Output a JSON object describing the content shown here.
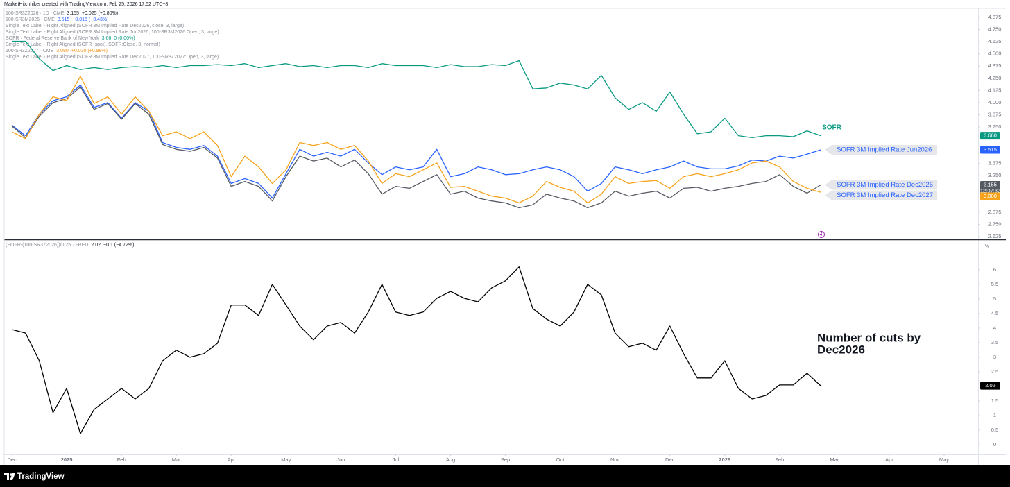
{
  "header": "MarketHitchhiker created with TradingView.com, Feb 25, 2026 17:52 UTC+8",
  "footer": "TradingView",
  "chart_data": [
    {
      "type": "line",
      "x": [
        0,
        0.25,
        0.5,
        0.75,
        1,
        1.25,
        1.5,
        1.75,
        2,
        2.25,
        2.5,
        2.75,
        3,
        3.25,
        3.5,
        3.75,
        4,
        4.25,
        4.5,
        4.75,
        5,
        5.25,
        5.5,
        5.75,
        6,
        6.25,
        6.5,
        6.75,
        7,
        7.25,
        7.5,
        7.75,
        8,
        8.25,
        8.5,
        8.75,
        9,
        9.25,
        9.5,
        9.75,
        10,
        10.25,
        10.5,
        10.75,
        11,
        11.25,
        11.5,
        11.75,
        12,
        12.25,
        12.5,
        12.75,
        13,
        13.25,
        13.5,
        13.75,
        14,
        14.25,
        14.5,
        14.75
      ],
      "xlim": [
        -0.14,
        17.62
      ],
      "ylim": [
        2.596,
        4.968
      ],
      "yticks": [
        4.875,
        {
          "value": 4.75,
          "label": "4.750"
        },
        4.625,
        {
          "value": 4.5,
          "label": "4.500"
        },
        4.375,
        {
          "value": 4.25,
          "label": "4.250"
        },
        4.125,
        {
          "value": 4,
          "label": "4.000"
        },
        3.875,
        {
          "value": 3.75,
          "label": "3.750"
        },
        3.375,
        {
          "value": 3.25,
          "label": "3.250"
        },
        2.875,
        {
          "value": 2.75,
          "label": "2.750"
        },
        2.625
      ],
      "grid": false,
      "countdown": "12:07:32",
      "legend": [
        {
          "name": "100-SR3Z2026 · 1D · CME",
          "value": "3.155",
          "change": "+0.025 (+0.80%)",
          "color": "#131722"
        },
        {
          "name": "100-SR3M2026 · CME",
          "value": "3.515",
          "change": "+0.015 (+0.43%)",
          "color": "#2962ff"
        },
        {
          "name": "Single Text Label - Right Aligned (SOFR 3M Implied Rate Dec2026, close, 3, large)"
        },
        {
          "name": "Single Text Label - Right Aligned (SOFR 3M Implied Rate Jun2026, 100-SR3M2026:Open, 3, large)"
        },
        {
          "name": "SOFR · Federal Reserve Bank of New York",
          "value": "3.66",
          "change": "0 (0.00%)",
          "color": "#089981"
        },
        {
          "name": "Single Text Label - Right Aligned (SOFR (spot), SOFR:Close, 3, normal)"
        },
        {
          "name": "100-SR3Z2027 · CME",
          "value": "3.080",
          "change": "+0.030 (+0.98%)",
          "color": "#f7931a"
        },
        {
          "name": "Single Text Label - Right Aligned (SOFR 3M Implied Rate Dec2027, 100-SR3Z2027:Open, 3, large)"
        }
      ],
      "series": [
        {
          "name": "SOFR",
          "color": "#089981",
          "label_box": false,
          "price_label": "3.660",
          "values": [
            4.63,
            4.63,
            4.45,
            4.33,
            4.38,
            4.34,
            4.36,
            4.34,
            4.36,
            4.37,
            4.36,
            4.38,
            4.36,
            4.38,
            4.38,
            4.39,
            4.38,
            4.4,
            4.36,
            4.38,
            4.4,
            4.37,
            4.38,
            4.36,
            4.38,
            4.38,
            4.36,
            4.4,
            4.38,
            4.38,
            4.38,
            4.36,
            4.39,
            4.37,
            4.37,
            4.39,
            4.38,
            4.43,
            4.14,
            4.15,
            4.2,
            4.18,
            4.14,
            4.28,
            4.05,
            3.93,
            4,
            3.91,
            4.11,
            3.88,
            3.68,
            3.7,
            3.84,
            3.66,
            3.64,
            3.66,
            3.66,
            3.65,
            3.71,
            3.66
          ]
        },
        {
          "name": "SOFR 3M Implied Rate Jun2026",
          "color": "#2962ff",
          "label_box": true,
          "price_label": "3.515",
          "values": [
            3.77,
            3.66,
            3.88,
            4.02,
            4.06,
            4.18,
            3.95,
            4,
            3.84,
            4,
            3.91,
            3.59,
            3.54,
            3.52,
            3.56,
            3.45,
            3.17,
            3.22,
            3.17,
            3.02,
            3.27,
            3.52,
            3.45,
            3.49,
            3.45,
            3.52,
            3.38,
            3.26,
            3.34,
            3.31,
            3.34,
            3.52,
            3.24,
            3.27,
            3.34,
            3.31,
            3.26,
            3.27,
            3.31,
            3.34,
            3.31,
            3.24,
            3.09,
            3.17,
            3.34,
            3.31,
            3.27,
            3.31,
            3.34,
            3.4,
            3.34,
            3.32,
            3.32,
            3.35,
            3.41,
            3.4,
            3.45,
            3.43,
            3.47,
            3.515
          ]
        },
        {
          "name": "SOFR 3M Implied Rate Dec2026",
          "color": "#555962",
          "label_box": true,
          "price_label": "3.155",
          "price_line": true,
          "values": [
            3.76,
            3.64,
            3.86,
            4,
            4.04,
            4.16,
            3.93,
            3.99,
            3.83,
            3.99,
            3.88,
            3.57,
            3.52,
            3.5,
            3.54,
            3.43,
            3.14,
            3.19,
            3.14,
            2.99,
            3.24,
            3.45,
            3.4,
            3.43,
            3.34,
            3.41,
            3.27,
            3.06,
            3.14,
            3.12,
            3.19,
            3.26,
            3.06,
            3.09,
            3.02,
            2.99,
            2.97,
            2.92,
            2.95,
            3.06,
            3.02,
            2.99,
            2.92,
            2.97,
            3.09,
            3.04,
            3.07,
            3.09,
            3.02,
            3.12,
            3.13,
            3.09,
            3.12,
            3.14,
            3.17,
            3.19,
            3.26,
            3.14,
            3.07,
            3.155
          ]
        },
        {
          "name": "SOFR 3M Implied Rate Dec2027",
          "color": "#f7a21b",
          "label_box": true,
          "price_label": "3.080",
          "values": [
            3.7,
            3.63,
            3.88,
            4.06,
            4.02,
            4.27,
            3.99,
            4.06,
            3.88,
            4.06,
            3.91,
            3.66,
            3.7,
            3.63,
            3.7,
            3.56,
            3.24,
            3.45,
            3.34,
            3.17,
            3.31,
            3.59,
            3.56,
            3.59,
            3.52,
            3.56,
            3.4,
            3.17,
            3.27,
            3.24,
            3.31,
            3.38,
            3.13,
            3.14,
            3.09,
            3.04,
            3.02,
            2.97,
            3.04,
            3.19,
            3.13,
            3.09,
            2.97,
            3.06,
            3.24,
            3.17,
            3.19,
            3.2,
            3.12,
            3.24,
            3.27,
            3.24,
            3.27,
            3.31,
            3.38,
            3.4,
            3.34,
            3.19,
            3.12,
            3.08
          ]
        }
      ]
    },
    {
      "type": "line",
      "x": [
        0,
        0.25,
        0.5,
        0.75,
        1,
        1.25,
        1.5,
        1.75,
        2,
        2.25,
        2.5,
        2.75,
        3,
        3.25,
        3.5,
        3.75,
        4,
        4.25,
        4.5,
        4.75,
        5,
        5.25,
        5.5,
        5.75,
        6,
        6.25,
        6.5,
        6.75,
        7,
        7.25,
        7.5,
        7.75,
        8,
        8.25,
        8.5,
        8.75,
        9,
        9.25,
        9.5,
        9.75,
        10,
        10.25,
        10.5,
        10.75,
        11,
        11.25,
        11.5,
        11.75,
        12,
        12.25,
        12.5,
        12.75,
        13,
        13.25,
        13.5,
        13.75,
        14,
        14.25,
        14.5,
        14.75
      ],
      "xlim": [
        -0.14,
        17.62
      ],
      "xticks": [
        {
          "value": 0,
          "label": "Dec"
        },
        {
          "value": 1,
          "label": "2025"
        },
        {
          "value": 2,
          "label": "Feb"
        },
        {
          "value": 3,
          "label": "Mar"
        },
        {
          "value": 4,
          "label": "Apr"
        },
        {
          "value": 5,
          "label": "May"
        },
        {
          "value": 6,
          "label": "Jun"
        },
        {
          "value": 7,
          "label": "Jul"
        },
        {
          "value": 8,
          "label": "Aug"
        },
        {
          "value": 9,
          "label": "Sep"
        },
        {
          "value": 10,
          "label": "Oct"
        },
        {
          "value": 11,
          "label": "Nov"
        },
        {
          "value": 12,
          "label": "Dec"
        },
        {
          "value": 13,
          "label": "2026"
        },
        {
          "value": 14,
          "label": "Feb"
        },
        {
          "value": 15,
          "label": "Mar"
        },
        {
          "value": 16,
          "label": "Apr"
        },
        {
          "value": 17,
          "label": "May"
        }
      ],
      "ylim": [
        -0.333,
        7.02
      ],
      "yticks": [
        0,
        0.5,
        1,
        1.5,
        2.5,
        3,
        3.5,
        4,
        4.5,
        5,
        5.5,
        6
      ],
      "y_unit": "%",
      "grid": false,
      "legend": [
        {
          "name": "(SOFR-(100-SR3Z2026))/0.25 · FRED",
          "value": "2.02",
          "change": "−0.1 (−4.72%)",
          "color": "#131722"
        }
      ],
      "annotation": [
        "Number of cuts by",
        "Dec2026"
      ],
      "series": [
        {
          "color": "#000000",
          "price_label": "2.02",
          "values": [
            3.95,
            3.83,
            2.88,
            1.1,
            1.93,
            0.38,
            1.21,
            1.57,
            1.93,
            1.57,
            1.93,
            2.88,
            3.24,
            3,
            3.12,
            3.48,
            4.79,
            4.79,
            4.43,
            5.5,
            4.79,
            4.07,
            3.6,
            4.07,
            4.19,
            3.83,
            4.55,
            5.5,
            4.55,
            4.43,
            4.55,
            5.02,
            5.26,
            5.02,
            4.9,
            5.38,
            5.62,
            6.1,
            4.67,
            4.31,
            4.07,
            4.55,
            5.5,
            5.14,
            3.83,
            3.36,
            3.48,
            3.24,
            4.07,
            3.12,
            2.29,
            2.29,
            2.88,
            1.93,
            1.57,
            1.69,
            2.05,
            2.05,
            2.45,
            2.02
          ]
        }
      ]
    }
  ]
}
